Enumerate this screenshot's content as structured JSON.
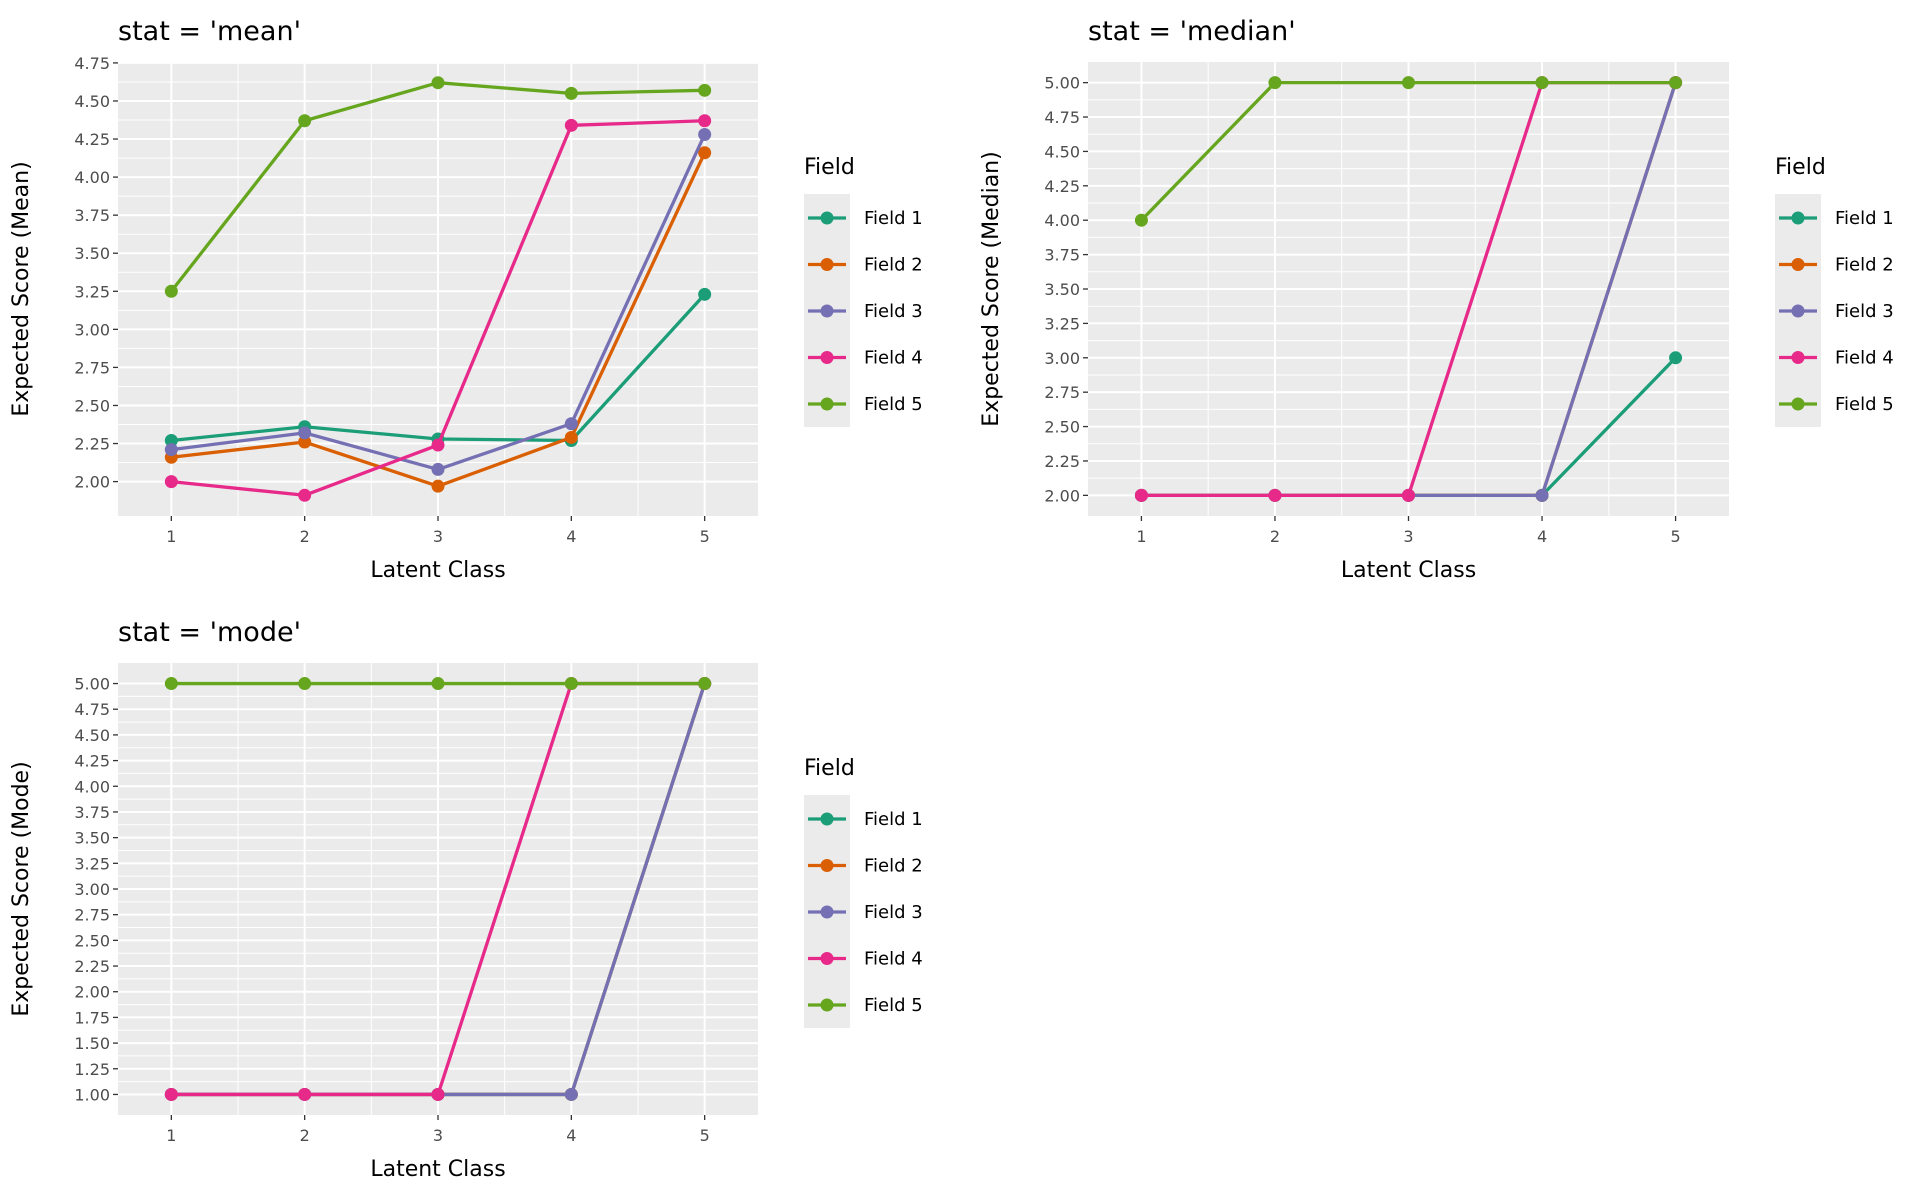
{
  "colors": {
    "panel_bg": "#EBEBEB",
    "grid": "#FFFFFF",
    "tick_text": "#4D4D4D",
    "text": "#000000"
  },
  "chart_data": [
    {
      "type": "line",
      "title": "stat = 'mean'",
      "xlabel": "Latent Class",
      "ylabel": "Expected Score (Mean)",
      "categories": [
        1,
        2,
        3,
        4,
        5
      ],
      "ylim": [
        1.774,
        4.756
      ],
      "yticks": [
        "2.00",
        "2.25",
        "2.50",
        "2.75",
        "3.00",
        "3.25",
        "3.50",
        "3.75",
        "4.00",
        "4.25",
        "4.50",
        "4.75"
      ],
      "grid": true,
      "legend": {
        "title": "Field",
        "placement": "right"
      },
      "series": [
        {
          "name": "Field 1",
          "color": "#1B9E77",
          "values": [
            2.27,
            2.36,
            2.28,
            2.27,
            3.23
          ]
        },
        {
          "name": "Field 2",
          "color": "#D95F02",
          "values": [
            2.16,
            2.26,
            1.97,
            2.29,
            4.16
          ]
        },
        {
          "name": "Field 3",
          "color": "#7570B3",
          "values": [
            2.21,
            2.32,
            2.08,
            2.38,
            4.28
          ]
        },
        {
          "name": "Field 4",
          "color": "#E7298A",
          "values": [
            2.0,
            1.91,
            2.24,
            4.34,
            4.37
          ]
        },
        {
          "name": "Field 5",
          "color": "#66A61E",
          "values": [
            3.25,
            4.37,
            4.62,
            4.55,
            4.57
          ]
        }
      ]
    },
    {
      "type": "line",
      "title": "stat = 'median'",
      "xlabel": "Latent Class",
      "ylabel": "Expected Score (Median)",
      "categories": [
        1,
        2,
        3,
        4,
        5
      ],
      "ylim": [
        1.85,
        5.15
      ],
      "yticks": [
        "2.00",
        "2.25",
        "2.50",
        "2.75",
        "3.00",
        "3.25",
        "3.50",
        "3.75",
        "4.00",
        "4.25",
        "4.50",
        "4.75",
        "5.00"
      ],
      "grid": true,
      "legend": {
        "title": "Field",
        "placement": "right"
      },
      "series": [
        {
          "name": "Field 1",
          "color": "#1B9E77",
          "values": [
            2,
            2,
            2,
            2,
            3
          ]
        },
        {
          "name": "Field 2",
          "color": "#D95F02",
          "values": [
            2,
            2,
            2,
            2,
            5
          ]
        },
        {
          "name": "Field 3",
          "color": "#7570B3",
          "values": [
            2,
            2,
            2,
            2,
            5
          ]
        },
        {
          "name": "Field 4",
          "color": "#E7298A",
          "values": [
            2,
            2,
            2,
            5,
            5
          ]
        },
        {
          "name": "Field 5",
          "color": "#66A61E",
          "values": [
            4,
            5,
            5,
            5,
            5
          ]
        }
      ]
    },
    {
      "type": "line",
      "title": "stat = 'mode'",
      "xlabel": "Latent Class",
      "ylabel": "Expected Score (Mode)",
      "categories": [
        1,
        2,
        3,
        4,
        5
      ],
      "ylim": [
        0.8,
        5.2
      ],
      "yticks": [
        "1.00",
        "1.25",
        "1.50",
        "1.75",
        "2.00",
        "2.25",
        "2.50",
        "2.75",
        "3.00",
        "3.25",
        "3.50",
        "3.75",
        "4.00",
        "4.25",
        "4.50",
        "4.75",
        "5.00"
      ],
      "grid": true,
      "legend": {
        "title": "Field",
        "placement": "right"
      },
      "series": [
        {
          "name": "Field 1",
          "color": "#1B9E77",
          "values": [
            1,
            1,
            1,
            1,
            5
          ]
        },
        {
          "name": "Field 2",
          "color": "#D95F02",
          "values": [
            1,
            1,
            1,
            1,
            5
          ]
        },
        {
          "name": "Field 3",
          "color": "#7570B3",
          "values": [
            1,
            1,
            1,
            1,
            5
          ]
        },
        {
          "name": "Field 4",
          "color": "#E7298A",
          "values": [
            1,
            1,
            1,
            5,
            5
          ]
        },
        {
          "name": "Field 5",
          "color": "#66A61E",
          "values": [
            5,
            5,
            5,
            5,
            5
          ]
        }
      ]
    }
  ]
}
